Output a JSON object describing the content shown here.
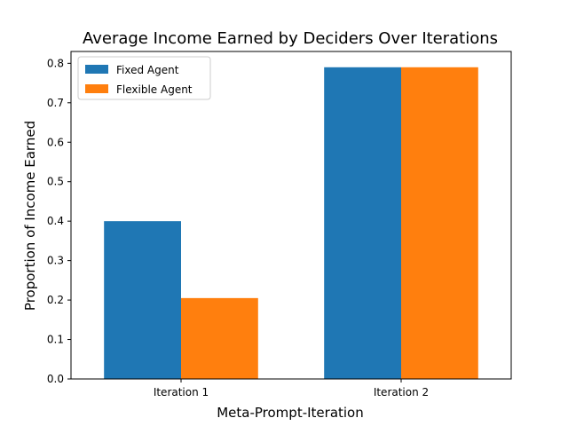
{
  "chart_data": {
    "type": "bar",
    "title": "Average Income Earned by Deciders Over Iterations",
    "xlabel": "Meta-Prompt-Iteration",
    "ylabel": "Proportion of Income Earned",
    "categories": [
      "Iteration 1",
      "Iteration 2"
    ],
    "series": [
      {
        "name": "Fixed Agent",
        "values": [
          0.4,
          0.79
        ],
        "color": "#1f77b4"
      },
      {
        "name": "Flexible Agent",
        "values": [
          0.205,
          0.79
        ],
        "color": "#ff7f0e"
      }
    ],
    "ylim": [
      0,
      0.83
    ],
    "yticks": [
      "0.0",
      "0.1",
      "0.2",
      "0.3",
      "0.4",
      "0.5",
      "0.6",
      "0.7",
      "0.8"
    ],
    "legend": "top-left",
    "grid": false
  }
}
